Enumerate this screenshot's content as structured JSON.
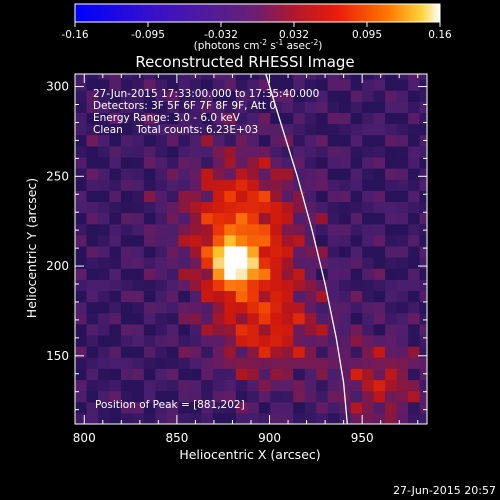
{
  "chart_data": {
    "type": "heatmap",
    "title": "Reconstructed RHESSI Image",
    "xlabel": "Heliocentric X (arcsec)",
    "ylabel": "Heliocentric Y (arcsec)",
    "xlim": [
      795,
      985
    ],
    "ylim": [
      112,
      307
    ],
    "x_ticks": [
      "800",
      "850",
      "900",
      "950"
    ],
    "y_ticks": [
      "150",
      "200",
      "250",
      "300"
    ],
    "colorbar": {
      "ticks": [
        "-0.16",
        "-0.095",
        "-0.032",
        "0.032",
        "0.095",
        "0.16"
      ],
      "range": [
        -0.16,
        0.16
      ],
      "unit_prefix": "(photons cm",
      "unit_sup1": "-2",
      "unit_mid": " s",
      "unit_sup2": "-1",
      "unit_mid2": " asec",
      "unit_sup3": "-2",
      "unit_suffix": ")"
    },
    "annotations": {
      "time_range": "27-Jun-2015 17:33:00.000 to 17:35:40.000",
      "detectors": "Detectors: 3F 5F 6F 7F 8F 9F, Att 0",
      "energy_range": "Energy Range: 3.0 - 6.0 keV",
      "clean": "Clean    Total counts: 6.23E+03",
      "peak": "Position of Peak = [881,202]"
    },
    "peak": {
      "x": 881,
      "y": 202
    },
    "limb_curve": [
      [
        898,
        307
      ],
      [
        906,
        280
      ],
      [
        915,
        250
      ],
      [
        923,
        220
      ],
      [
        930,
        190
      ],
      [
        936,
        160
      ],
      [
        940,
        135
      ],
      [
        942,
        112
      ]
    ],
    "grid": false
  },
  "footer": {
    "timestamp": "27-Jun-2015 20:57"
  }
}
